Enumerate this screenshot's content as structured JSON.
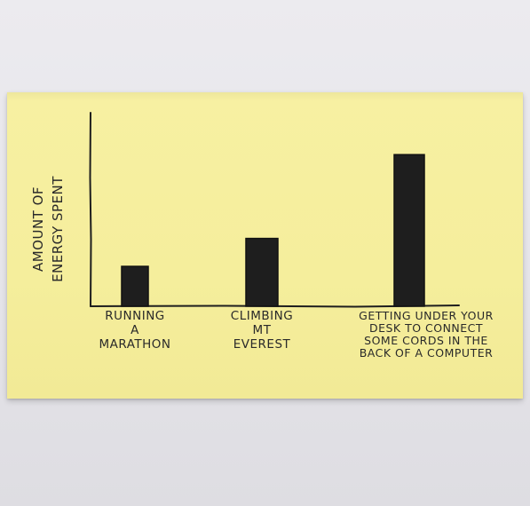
{
  "chart_data": {
    "type": "bar",
    "title": "",
    "xlabel": "",
    "ylabel_lines": [
      "AMOUNT OF",
      "ENERGY SPENT"
    ],
    "categories": [
      {
        "label_lines": [
          "RUNNING",
          "A",
          "MARATHON"
        ]
      },
      {
        "label_lines": [
          "CLIMBING",
          "MT",
          "EVEREST"
        ]
      },
      {
        "label_lines": [
          "GETTING UNDER YOUR",
          "DESK TO CONNECT",
          "SOME CORDS IN THE",
          "BACK OF A COMPUTER"
        ]
      }
    ],
    "values": [
      1.0,
      1.7,
      3.8
    ],
    "ylim": [
      0,
      4.85
    ],
    "grid": false,
    "legend": "none",
    "axis_ticks": false
  },
  "colors": {
    "note": "#f5ee9c",
    "ink": "#1e1e1e",
    "background": "#e6e5ea"
  }
}
